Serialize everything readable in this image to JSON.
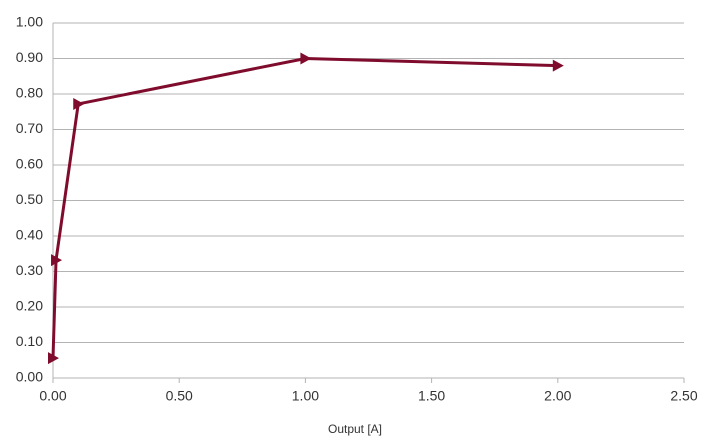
{
  "chart_data": {
    "type": "line",
    "x_label": "Output [A]",
    "x": [
      0.0,
      0.012,
      0.1,
      1.0,
      2.0
    ],
    "values": [
      0.056,
      0.332,
      0.772,
      0.9,
      0.88
    ],
    "color": "#7f0c2d",
    "xlim": [
      0,
      2.5
    ],
    "xticks": [
      {
        "value": 0,
        "label": "0.00"
      },
      {
        "value": 0.5,
        "label": "0.50"
      },
      {
        "value": 1,
        "label": "1.00"
      },
      {
        "value": 1.5,
        "label": "1.50"
      },
      {
        "value": 2,
        "label": "2.00"
      },
      {
        "value": 2.5,
        "label": "2.50"
      }
    ],
    "ylim": [
      0,
      1
    ],
    "yticks": [
      {
        "value": 0,
        "label": "0.00"
      },
      {
        "value": 0.1,
        "label": "0.10"
      },
      {
        "value": 0.2,
        "label": "0.20"
      },
      {
        "value": 0.3,
        "label": "0.30"
      },
      {
        "value": 0.4,
        "label": "0.40"
      },
      {
        "value": 0.5,
        "label": "0.50"
      },
      {
        "value": 0.6,
        "label": "0.60"
      },
      {
        "value": 0.7,
        "label": "0.70"
      },
      {
        "value": 0.8,
        "label": "0.80"
      },
      {
        "value": 0.9,
        "label": "0.90"
      },
      {
        "value": 1,
        "label": "1.00"
      }
    ],
    "grid": true,
    "marker": "triangle-right"
  }
}
